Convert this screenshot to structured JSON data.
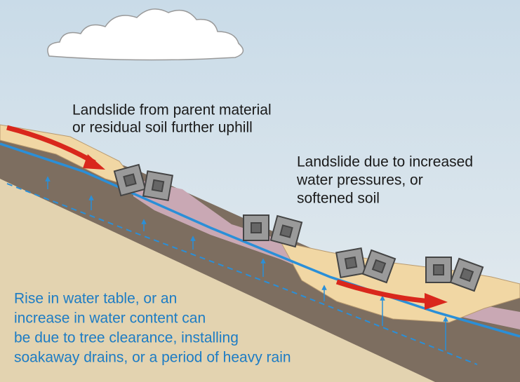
{
  "labels": [
    {
      "lines": [
        "Landslide from parent material",
        "or residual soil further uphill"
      ]
    },
    {
      "lines": [
        "Landslide due to increased",
        "water pressures, or",
        "softened soil"
      ]
    },
    {
      "lines": [
        "Rise in water table, or an",
        "increase in water content can",
        "be due to tree clearance, installing",
        "soakaway drains, or a period of heavy rain"
      ]
    }
  ]
}
